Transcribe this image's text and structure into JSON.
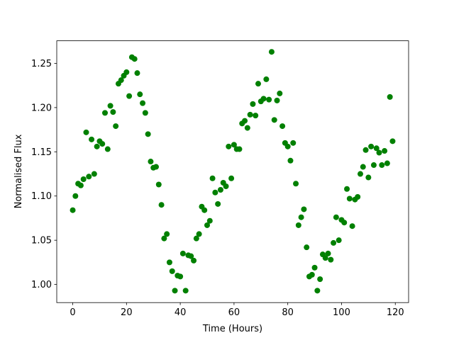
{
  "chart_data": {
    "type": "scatter",
    "x_label": "Time (Hours)",
    "y_label": "Normalised Flux",
    "color": "#008000",
    "x": [
      0,
      1,
      2,
      3,
      4,
      5,
      6,
      7,
      8,
      9,
      10,
      11,
      12,
      13,
      14,
      15,
      16,
      17,
      18,
      19,
      20,
      21,
      22,
      23,
      24,
      25,
      26,
      27,
      28,
      29,
      30,
      31,
      32,
      33,
      34,
      35,
      36,
      37,
      38,
      39,
      40,
      41,
      42,
      43,
      44,
      45,
      46,
      47,
      48,
      49,
      50,
      51,
      52,
      53,
      54,
      55,
      56,
      57,
      58,
      59,
      60,
      61,
      62,
      63,
      64,
      65,
      66,
      67,
      68,
      69,
      70,
      71,
      72,
      73,
      74,
      75,
      76,
      77,
      78,
      79,
      80,
      81,
      82,
      83,
      84,
      85,
      86,
      87,
      88,
      89,
      90,
      91,
      92,
      93,
      94,
      95,
      96,
      97,
      98,
      99,
      100,
      101,
      102,
      103,
      104,
      105,
      106,
      107,
      108,
      109,
      110,
      111,
      112,
      113,
      114,
      115,
      116,
      117,
      118,
      119
    ],
    "values": [
      1.084,
      1.1,
      1.114,
      1.112,
      1.119,
      1.172,
      1.122,
      1.164,
      1.125,
      1.156,
      1.162,
      1.159,
      1.194,
      1.153,
      1.202,
      1.195,
      1.179,
      1.227,
      1.231,
      1.236,
      1.24,
      1.213,
      1.257,
      1.255,
      1.239,
      1.215,
      1.205,
      1.194,
      1.17,
      1.139,
      1.132,
      1.133,
      1.113,
      1.09,
      1.052,
      1.057,
      1.025,
      1.015,
      0.993,
      1.01,
      1.009,
      1.035,
      0.993,
      1.033,
      1.032,
      1.027,
      1.052,
      1.057,
      1.088,
      1.084,
      1.067,
      1.072,
      1.12,
      1.104,
      1.091,
      1.107,
      1.115,
      1.111,
      1.156,
      1.12,
      1.158,
      1.153,
      1.153,
      1.182,
      1.185,
      1.177,
      1.192,
      1.204,
      1.191,
      1.227,
      1.207,
      1.21,
      1.232,
      1.209,
      1.263,
      1.186,
      1.208,
      1.216,
      1.179,
      1.16,
      1.156,
      1.14,
      1.16,
      1.114,
      1.067,
      1.076,
      1.085,
      1.042,
      1.009,
      1.011,
      1.019,
      0.993,
      1.006,
      1.034,
      1.03,
      1.035,
      1.028,
      1.047,
      1.076,
      1.05,
      1.073,
      1.07,
      1.108,
      1.097,
      1.066,
      1.096,
      1.099,
      1.125,
      1.133,
      1.152,
      1.121,
      1.156,
      1.135,
      1.154,
      1.149,
      1.135,
      1.151,
      1.137,
      1.212,
      1.162
    ],
    "xlim": [
      -5.95,
      124.95
    ],
    "xticks": [
      0,
      20,
      40,
      60,
      80,
      100,
      120
    ],
    "ylim": [
      0.9795,
      1.2755
    ],
    "yticks": [
      {
        "value": 1.0,
        "label": "1.00"
      },
      1.05,
      {
        "value": 1.1,
        "label": "1.10"
      },
      1.15,
      {
        "value": 1.2,
        "label": "1.20"
      },
      1.25
    ]
  }
}
